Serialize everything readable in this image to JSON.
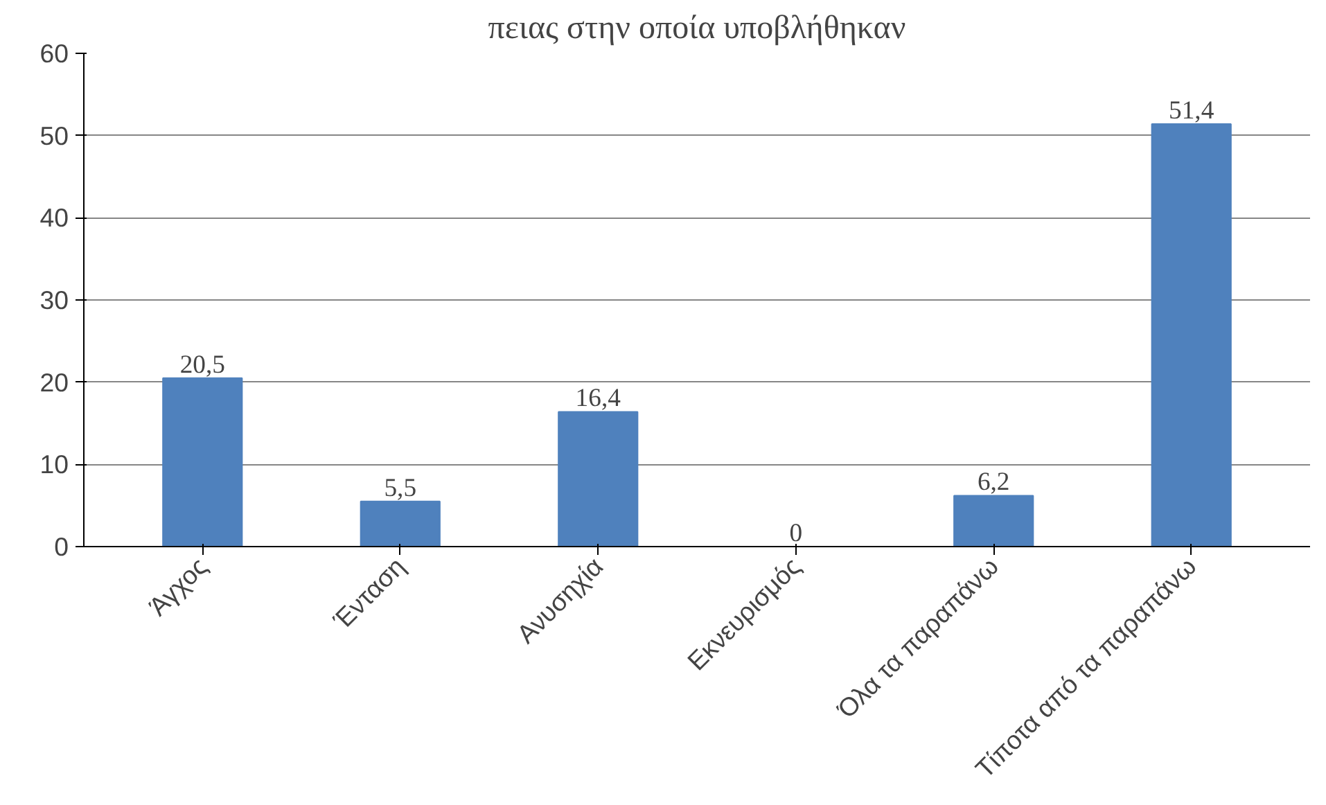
{
  "chart_data": {
    "type": "bar",
    "title": "πειας στην οποία υποβλήθηκαν",
    "categories": [
      "Άγχος",
      "Ένταση",
      "Ανυσηχία",
      "Εκνευρισμός",
      "Όλα τα παραπάνω",
      "Τίποτα από τα παραπάνω"
    ],
    "values": [
      20.5,
      5.5,
      16.4,
      0,
      6.2,
      51.4
    ],
    "color": "#4f81bd",
    "ylim": [
      0,
      60
    ],
    "yticks": [
      0,
      10,
      20,
      30,
      40,
      50,
      60
    ],
    "grid": "y",
    "value_labels": [
      "20,5",
      "5,5",
      "16,4",
      "0",
      "6,2",
      "51,4"
    ]
  }
}
